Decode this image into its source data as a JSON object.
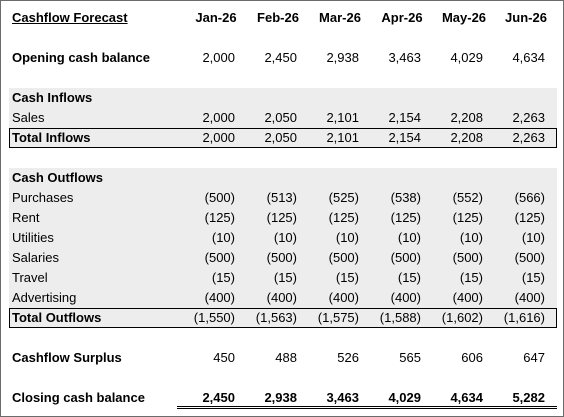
{
  "title": "Cashflow Forecast",
  "months": [
    "Jan-26",
    "Feb-26",
    "Mar-26",
    "Apr-26",
    "May-26",
    "Jun-26"
  ],
  "opening": {
    "label": "Opening cash balance",
    "values": [
      "2,000",
      "2,450",
      "2,938",
      "3,463",
      "4,029",
      "4,634"
    ]
  },
  "inflows": {
    "heading": "Cash Inflows",
    "rows": [
      {
        "label": "Sales",
        "values": [
          "2,000",
          "2,050",
          "2,101",
          "2,154",
          "2,208",
          "2,263"
        ]
      }
    ],
    "total": {
      "label": "Total Inflows",
      "values": [
        "2,000",
        "2,050",
        "2,101",
        "2,154",
        "2,208",
        "2,263"
      ]
    }
  },
  "outflows": {
    "heading": "Cash Outflows",
    "rows": [
      {
        "label": "Purchases",
        "values": [
          "(500)",
          "(513)",
          "(525)",
          "(538)",
          "(552)",
          "(566)"
        ]
      },
      {
        "label": "Rent",
        "values": [
          "(125)",
          "(125)",
          "(125)",
          "(125)",
          "(125)",
          "(125)"
        ]
      },
      {
        "label": "Utilities",
        "values": [
          "(10)",
          "(10)",
          "(10)",
          "(10)",
          "(10)",
          "(10)"
        ]
      },
      {
        "label": "Salaries",
        "values": [
          "(500)",
          "(500)",
          "(500)",
          "(500)",
          "(500)",
          "(500)"
        ]
      },
      {
        "label": "Travel",
        "values": [
          "(15)",
          "(15)",
          "(15)",
          "(15)",
          "(15)",
          "(15)"
        ]
      },
      {
        "label": "Advertising",
        "values": [
          "(400)",
          "(400)",
          "(400)",
          "(400)",
          "(400)",
          "(400)"
        ]
      }
    ],
    "total": {
      "label": "Total Outflows",
      "values": [
        "(1,550)",
        "(1,563)",
        "(1,575)",
        "(1,588)",
        "(1,602)",
        "(1,616)"
      ]
    }
  },
  "surplus": {
    "label": "Cashflow Surplus",
    "values": [
      "450",
      "488",
      "526",
      "565",
      "606",
      "647"
    ]
  },
  "closing": {
    "label": "Closing cash balance",
    "values": [
      "2,450",
      "2,938",
      "3,463",
      "4,029",
      "4,634",
      "5,282"
    ]
  }
}
